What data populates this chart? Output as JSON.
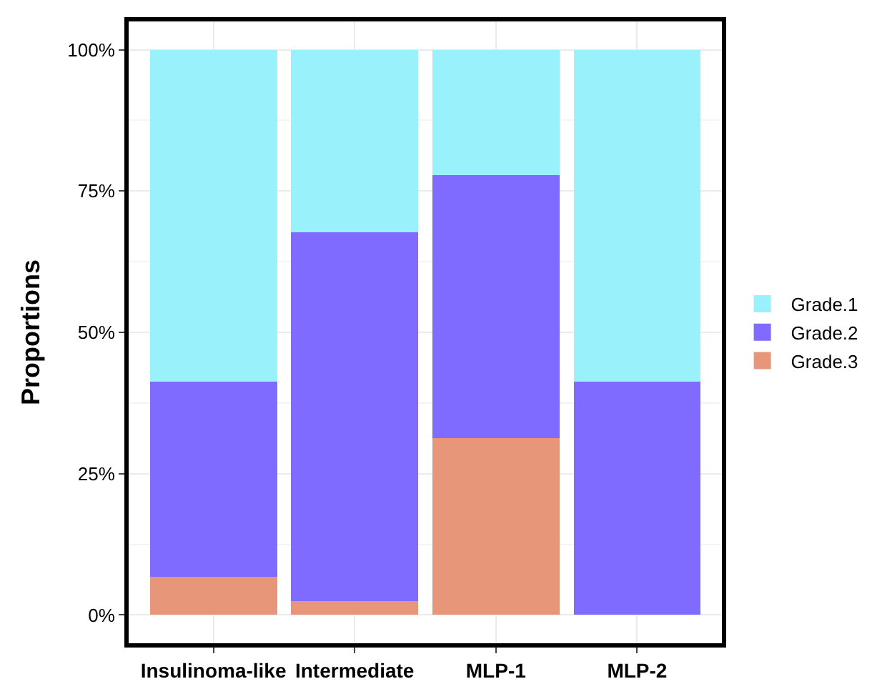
{
  "chart_data": {
    "type": "bar",
    "stacked": true,
    "ylabel": "Proportions",
    "categories": [
      "Insulinoma-like",
      "Intermediate",
      "MLP-1",
      "MLP-2"
    ],
    "series": [
      {
        "name": "Grade.3",
        "color": "#e8967a",
        "values": [
          6.8,
          2.4,
          31.3,
          0
        ]
      },
      {
        "name": "Grade.2",
        "color": "#7f6bff",
        "values": [
          34.5,
          65.3,
          46.5,
          41.3
        ]
      },
      {
        "name": "Grade.1",
        "color": "#99f2fb",
        "values": [
          58.7,
          32.3,
          22.2,
          58.7
        ]
      }
    ],
    "ylim": [
      -5,
      105
    ],
    "yticks": [
      {
        "value": 0,
        "label": "0%"
      },
      {
        "value": 25,
        "label": "25%"
      },
      {
        "value": 50,
        "label": "50%"
      },
      {
        "value": 75,
        "label": "75%"
      },
      {
        "value": 100,
        "label": "100%"
      }
    ],
    "grid": true,
    "legend": "right"
  }
}
